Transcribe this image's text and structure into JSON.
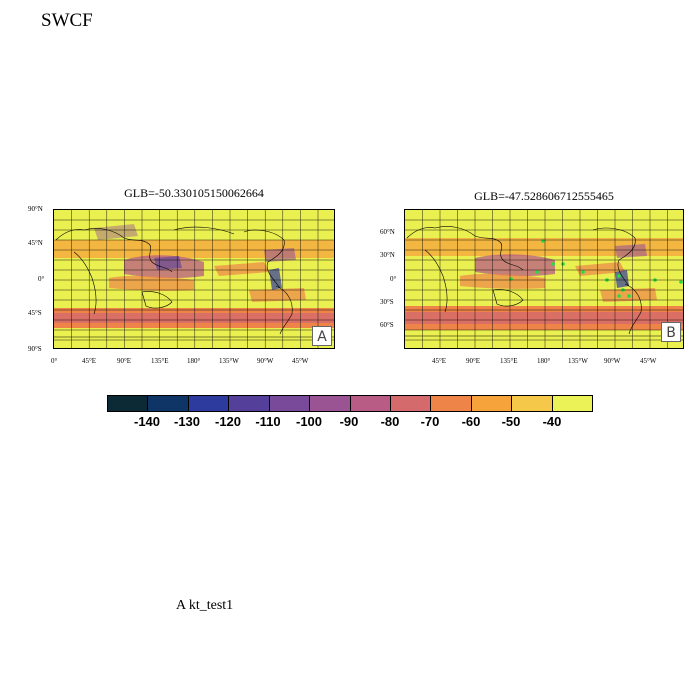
{
  "title": "SWCF",
  "case_label": "A  kt_test1",
  "panels": [
    {
      "id": "A",
      "title": "GLB=-50.330105150062664",
      "letter": "A",
      "lat_ticks": [
        "90°N",
        "45°N",
        "0°",
        "45°S",
        "90°S"
      ],
      "lon_ticks": [
        "0°",
        "45°E",
        "90°E",
        "135°E",
        "180°",
        "135°W",
        "90°W",
        "45°W"
      ]
    },
    {
      "id": "B",
      "title": "GLB=-47.528606712555465",
      "letter": "B",
      "lat_ticks": [
        "60°N",
        "30°N",
        "0°",
        "30°S",
        "60°S"
      ],
      "lon_ticks": [
        "45°E",
        "90°E",
        "135°E",
        "180°",
        "135°W",
        "90°W",
        "45°W"
      ]
    }
  ],
  "colorbar": {
    "labels": [
      "-140",
      "-130",
      "-120",
      "-110",
      "-100",
      "-90",
      "-80",
      "-70",
      "-60",
      "-50",
      "-40"
    ],
    "colors": [
      "#0b2a35",
      "#0e3566",
      "#2e3b9e",
      "#54409a",
      "#7a4a9a",
      "#9a5493",
      "#b85c85",
      "#d56a6d",
      "#ee8448",
      "#f6a33c",
      "#f5c84a",
      "#eaf258"
    ]
  }
}
